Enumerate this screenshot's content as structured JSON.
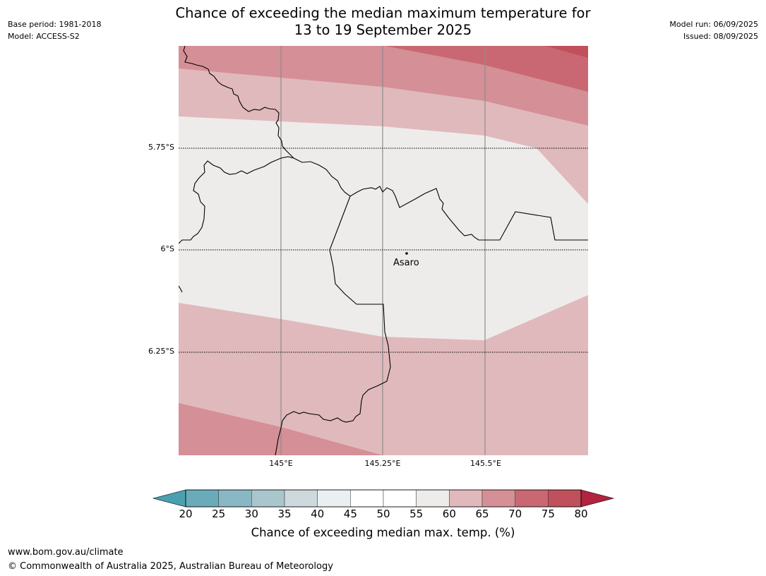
{
  "title": {
    "line1": "Chance of exceeding the median maximum temperature for",
    "line2": "13 to 19 September 2025"
  },
  "meta_left": {
    "base_period": "Base period: 1981-2018",
    "model": "Model: ACCESS-S2"
  },
  "meta_right": {
    "model_run": "Model run: 06/09/2025",
    "issued": "Issued: 08/09/2025"
  },
  "map": {
    "lat_labels": [
      "5.75°S",
      "6°S",
      "6.25°S"
    ],
    "lon_labels": [
      "145°E",
      "145.25°E",
      "145.5°E"
    ],
    "place": {
      "name": "Asaro"
    },
    "fill_colors": {
      "p55_60": "#eeecea",
      "p60_65": "#e0b9bd",
      "p65_70": "#d58f96",
      "p70_75": "#c96872",
      "p75_80": "#c0505c"
    }
  },
  "colorbar": {
    "ticks": [
      "20",
      "25",
      "30",
      "35",
      "40",
      "45",
      "50",
      "55",
      "60",
      "65",
      "70",
      "75",
      "80"
    ],
    "colors": [
      "#4aa0b0",
      "#6aabba",
      "#8ab7c4",
      "#a9c6cc",
      "#cdd9dc",
      "#eaf0f1",
      "#ffffff",
      "#ffffff",
      "#eeecea",
      "#e0b9bd",
      "#d58f96",
      "#c96872",
      "#c0505c",
      "#b2233f"
    ],
    "label": "Chance of exceeding median max. temp. (%)"
  },
  "footer": {
    "url": "www.bom.gov.au/climate",
    "copyright": "© Commonwealth of Australia 2025, Australian Bureau of Meteorology"
  }
}
